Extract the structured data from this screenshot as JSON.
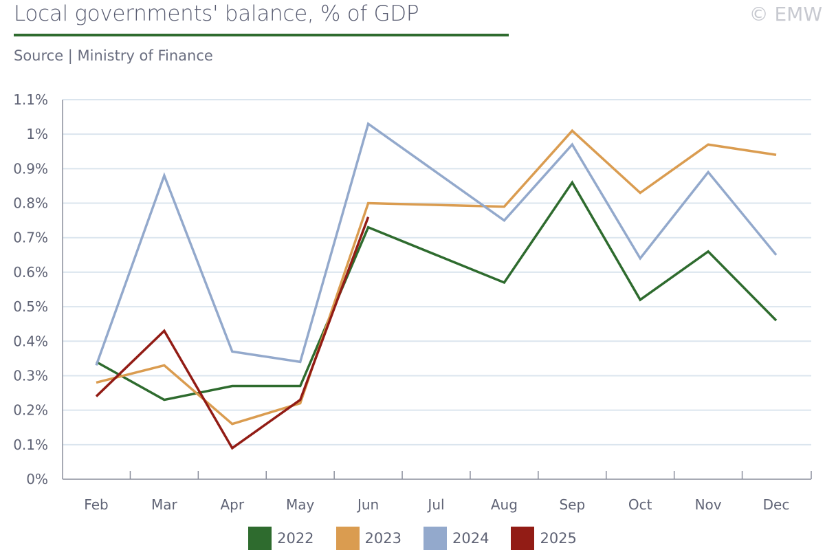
{
  "header": {
    "title": "Local governments' balance, % of GDP",
    "source": "Source | Ministry of Finance",
    "copyright": "© EMW"
  },
  "chart_data": {
    "type": "line",
    "title": "Local governments' balance, % of GDP",
    "xlabel": "",
    "ylabel": "",
    "categories": [
      "Feb",
      "Mar",
      "Apr",
      "May",
      "Jun",
      "Jul",
      "Aug",
      "Sep",
      "Oct",
      "Nov",
      "Dec"
    ],
    "ylim": [
      0,
      1.1
    ],
    "yticks": [
      0,
      0.1,
      0.2,
      0.3,
      0.4,
      0.5,
      0.6,
      0.7,
      0.8,
      0.9,
      1.0,
      1.1
    ],
    "ytick_labels": [
      "0%",
      "0.1%",
      "0.2%",
      "0.3%",
      "0.4%",
      "0.5%",
      "0.6%",
      "0.7%",
      "0.8%",
      "0.9%",
      "1%",
      "1.1%"
    ],
    "grid": true,
    "legend": "bottom",
    "series": [
      {
        "name": "2022",
        "color": "#2e6b2e",
        "values": [
          0.34,
          0.23,
          0.27,
          0.27,
          0.73,
          null,
          0.57,
          0.86,
          0.52,
          0.66,
          0.46
        ]
      },
      {
        "name": "2023",
        "color": "#da9c50",
        "values": [
          0.28,
          0.33,
          0.16,
          0.22,
          0.8,
          null,
          0.79,
          1.01,
          0.83,
          0.97,
          0.94
        ]
      },
      {
        "name": "2024",
        "color": "#93a9cc",
        "values": [
          0.33,
          0.88,
          0.37,
          0.34,
          1.03,
          null,
          0.75,
          0.97,
          0.64,
          0.89,
          0.65
        ]
      },
      {
        "name": "2025",
        "color": "#921c15",
        "values": [
          0.24,
          0.43,
          0.09,
          0.23,
          0.76,
          null,
          null,
          null,
          null,
          null,
          null
        ]
      }
    ]
  }
}
